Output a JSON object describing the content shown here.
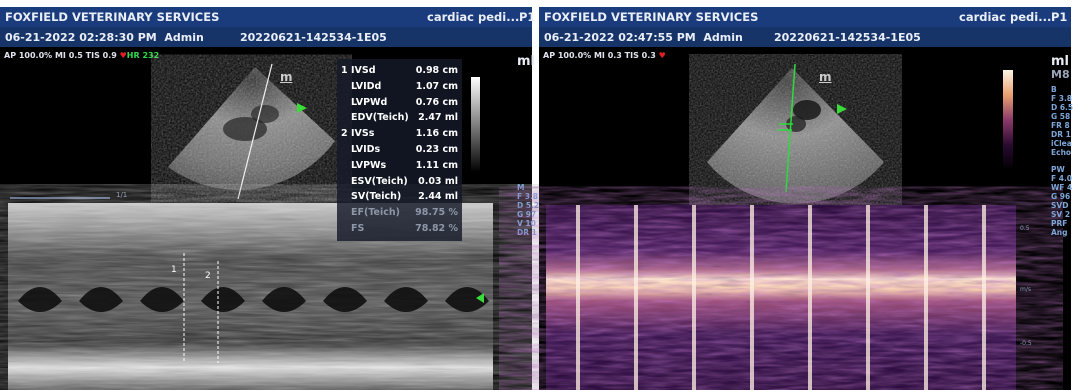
{
  "left": {
    "clinic_name": "FOXFIELD VETERINARY SERVICES",
    "preset": "cardiac pedi...",
    "probe_partial": "P1",
    "datetime": "06-21-2022 02:28:30 PM",
    "operator": "Admin",
    "study_id": "20220621-142534-1E05",
    "ap": "AP 100.0%",
    "mi": "MI 0.5",
    "tis": "TIS 0.9",
    "hr": "HR 232",
    "ml_label": "ml",
    "sector_marker": "m",
    "scale_label": "1/1",
    "cursor_labels": [
      "1",
      "2"
    ],
    "side_params": [
      "F 3.8",
      "D 5.2",
      "G 97",
      "V 10",
      "DR 1"
    ],
    "side_section": "M",
    "measurements": [
      {
        "group": "1",
        "label": "IVSd",
        "value": "0.98 cm"
      },
      {
        "group": "",
        "label": "LVIDd",
        "value": "1.07 cm"
      },
      {
        "group": "",
        "label": "LVPWd",
        "value": "0.76 cm"
      },
      {
        "group": "",
        "label": "EDV(Teich)",
        "value": "2.47 ml"
      },
      {
        "group": "2",
        "label": "IVSs",
        "value": "1.16 cm"
      },
      {
        "group": "",
        "label": "LVIDs",
        "value": "0.23 cm"
      },
      {
        "group": "",
        "label": "LVPWs",
        "value": "1.11 cm"
      },
      {
        "group": "",
        "label": "ESV(Teich)",
        "value": "0.03 ml"
      },
      {
        "group": "",
        "label": "SV(Teich)",
        "value": "2.44 ml"
      },
      {
        "group": "",
        "label": "EF(Teich)",
        "value": "98.75 %"
      },
      {
        "group": "",
        "label": "FS",
        "value": "78.82 %"
      }
    ]
  },
  "right": {
    "clinic_name": "FOXFIELD VETERINARY SERVICES",
    "preset": "cardiac pedi...",
    "probe_partial": "P1",
    "datetime": "06-21-2022 02:47:55 PM",
    "operator": "Admin",
    "study_id": "20220621-142534-1E05",
    "ap": "AP 100.0%",
    "mi": "MI 0.3",
    "tis": "TIS 0.3",
    "ml_label": "ml",
    "m8_label": "M8",
    "sector_marker": "m",
    "side_b_label": "B",
    "side_b_params": [
      "F 3.8",
      "D 6.5",
      "G 58",
      "FR 8",
      "DR 1",
      "iClea",
      "Echo"
    ],
    "side_pw_label": "PW",
    "side_pw_params": [
      "F 4.0",
      "WF 4",
      "G 96",
      "SVD",
      "SV 2",
      "PRF",
      "Ang"
    ],
    "velocity_top": "0.5",
    "velocity_unit": "m/s",
    "velocity_bottom": "-0.5"
  },
  "colors": {
    "header_bar": "#1a3c7c",
    "subheader_bar": "#163468",
    "heart": "#e02020",
    "hr_text": "#2fdc4c",
    "side_text": "#7ea6d8",
    "doppler_purple": "#3a1650",
    "doppler_bright": "#ffe6cc"
  }
}
